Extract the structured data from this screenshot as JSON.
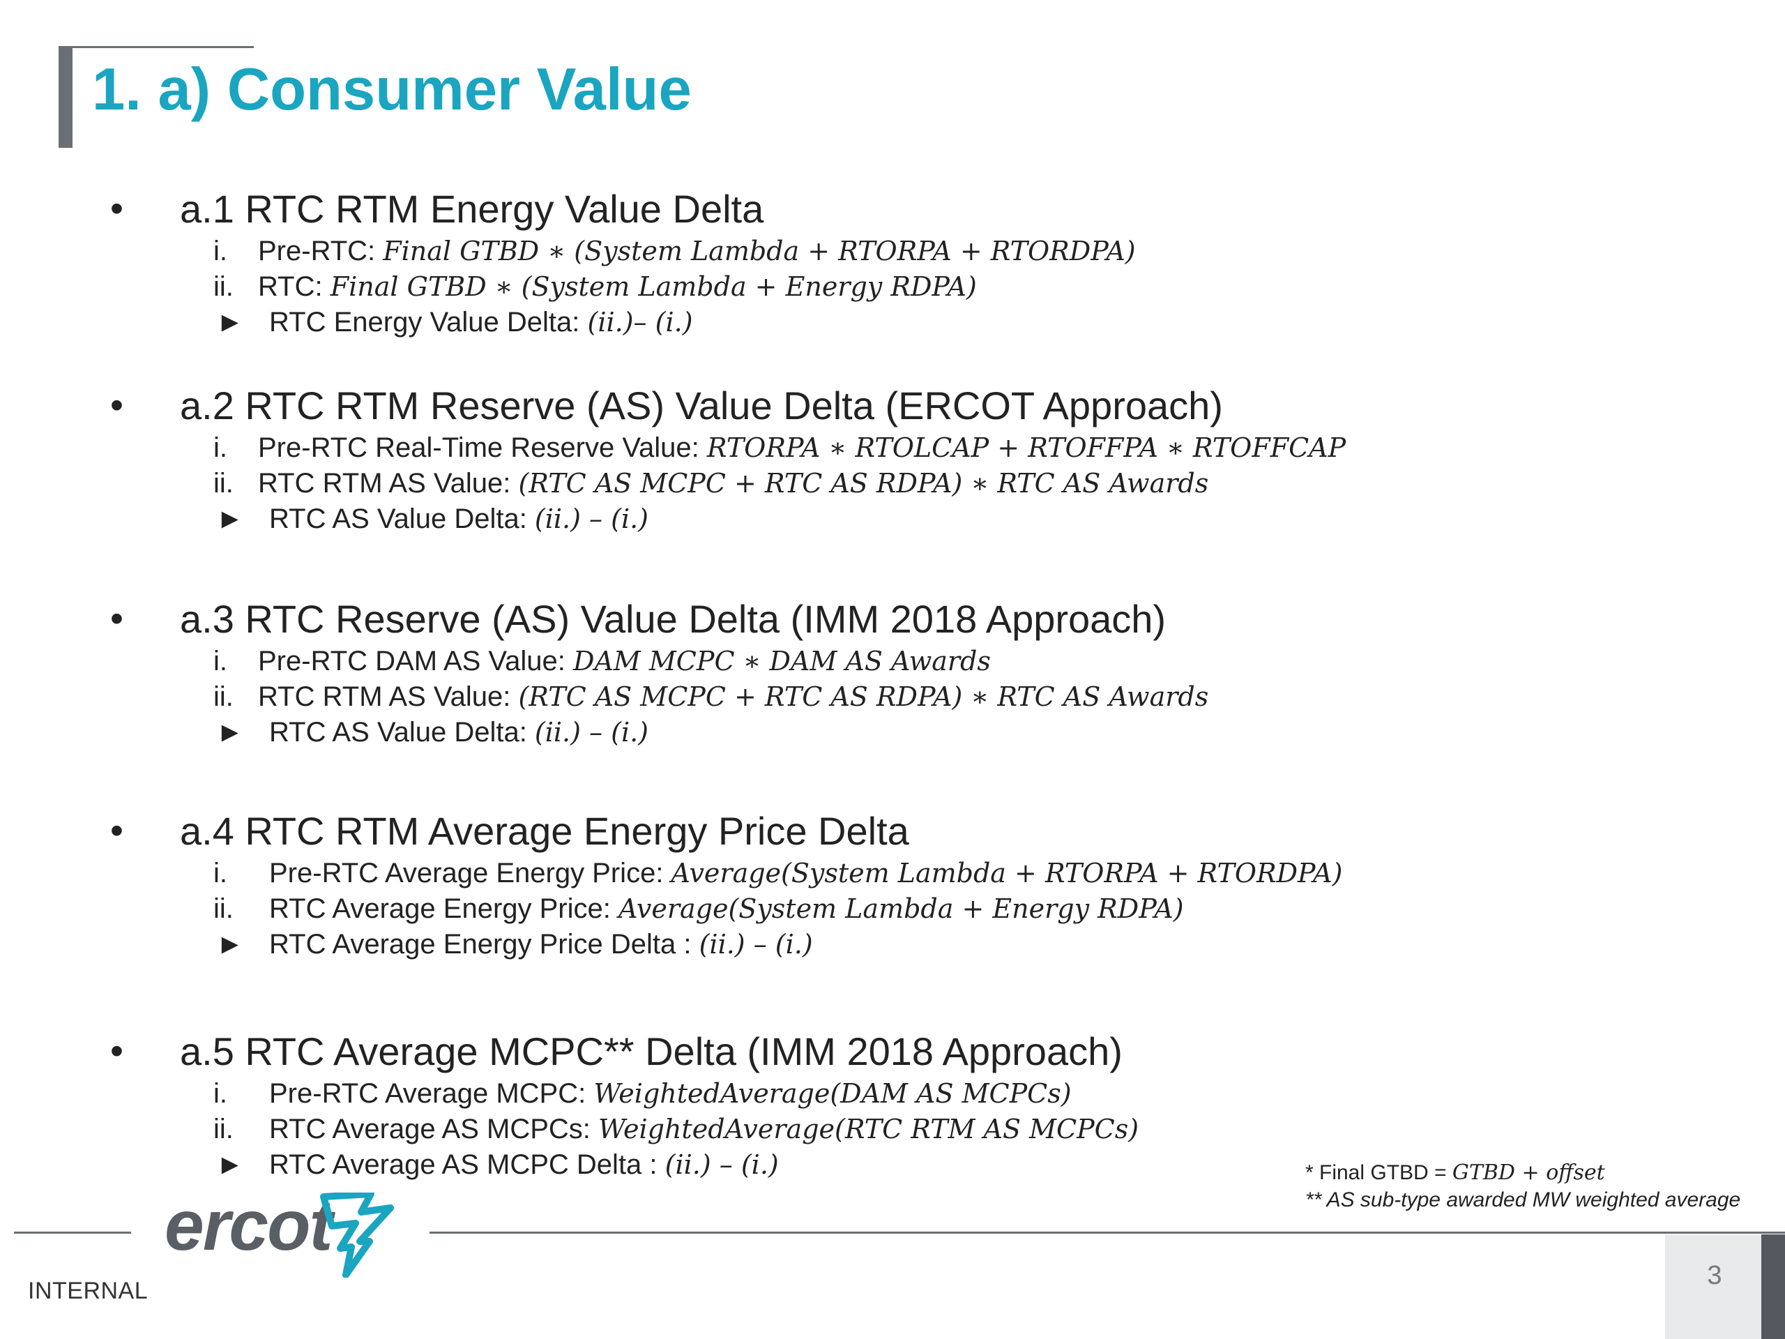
{
  "title": "1. a) Consumer Value",
  "sections": [
    {
      "heading": "a.1 RTC RTM Energy Value Delta",
      "items": [
        {
          "marker": "i.",
          "text": "Pre-RTC: ",
          "math": "Final GTBD ∗ (System Lambda + RTORPA + RTORDPA)"
        },
        {
          "marker": "ii.",
          "text": "RTC: ",
          "math": "Final GTBD ∗ (System Lambda + Energy RDPA)"
        },
        {
          "marker": "►",
          "text": "RTC Energy Value Delta: ",
          "math": "(ii.)– (i.)"
        }
      ]
    },
    {
      "heading": "a.2 RTC RTM Reserve (AS) Value Delta (ERCOT Approach)",
      "items": [
        {
          "marker": "i.",
          "text": "Pre-RTC Real-Time Reserve Value: ",
          "math": "RTORPA ∗ RTOLCAP + RTOFFPA ∗ RTOFFCAP"
        },
        {
          "marker": "ii.",
          "text": "RTC RTM AS Value: ",
          "math": "(RTC AS MCPC + RTC AS RDPA) ∗ RTC AS Awards"
        },
        {
          "marker": "►",
          "text": "RTC AS Value Delta: ",
          "math": "(ii.) – (i.)"
        }
      ]
    },
    {
      "heading": "a.3 RTC Reserve (AS) Value Delta (IMM 2018 Approach)",
      "items": [
        {
          "marker": "i.",
          "text": "Pre-RTC DAM AS Value: ",
          "math": "DAM MCPC ∗ DAM AS Awards"
        },
        {
          "marker": "ii.",
          "text": "RTC RTM AS Value: ",
          "math": "(RTC AS MCPC + RTC AS RDPA) ∗ RTC AS Awards"
        },
        {
          "marker": "►",
          "text": "RTC AS Value Delta: ",
          "math": "(ii.) – (i.)"
        }
      ]
    },
    {
      "heading": "a.4 RTC RTM Average Energy Price Delta",
      "items": [
        {
          "marker": "i.",
          "text": "Pre-RTC Average Energy Price: ",
          "math": "Average(System Lambda + RTORPA + RTORDPA)"
        },
        {
          "marker": "ii.",
          "text": "RTC Average Energy Price: ",
          "math": "Average(System Lambda + Energy RDPA)"
        },
        {
          "marker": "►",
          "text": "RTC Average Energy Price Delta : ",
          "math": "(ii.) – (i.)"
        }
      ]
    },
    {
      "heading": "a.5 RTC Average MCPC** Delta (IMM 2018 Approach)",
      "items": [
        {
          "marker": "i.",
          "text": "Pre-RTC Average MCPC: ",
          "math": "WeightedAverage(DAM AS MCPCs)"
        },
        {
          "marker": "ii.",
          "text": "RTC Average AS MCPCs: ",
          "math": "WeightedAverage(RTC RTM AS MCPCs)"
        },
        {
          "marker": "►",
          "text": "RTC Average AS MCPC Delta : ",
          "math": "(ii.) – (i.)"
        }
      ]
    }
  ],
  "footnotes": {
    "note1_text": "* Final GTBD = ",
    "note1_math": "GTBD + offset",
    "note2": "** AS sub-type awarded MW weighted average"
  },
  "footer": {
    "logo_text": "ercot",
    "label": "INTERNAL",
    "page_number": "3"
  },
  "colors": {
    "title": "#1aa5c0",
    "logo_text": "#5a5f66",
    "logo_mark": "#1aa5c0",
    "rule": "#6b6e73"
  }
}
